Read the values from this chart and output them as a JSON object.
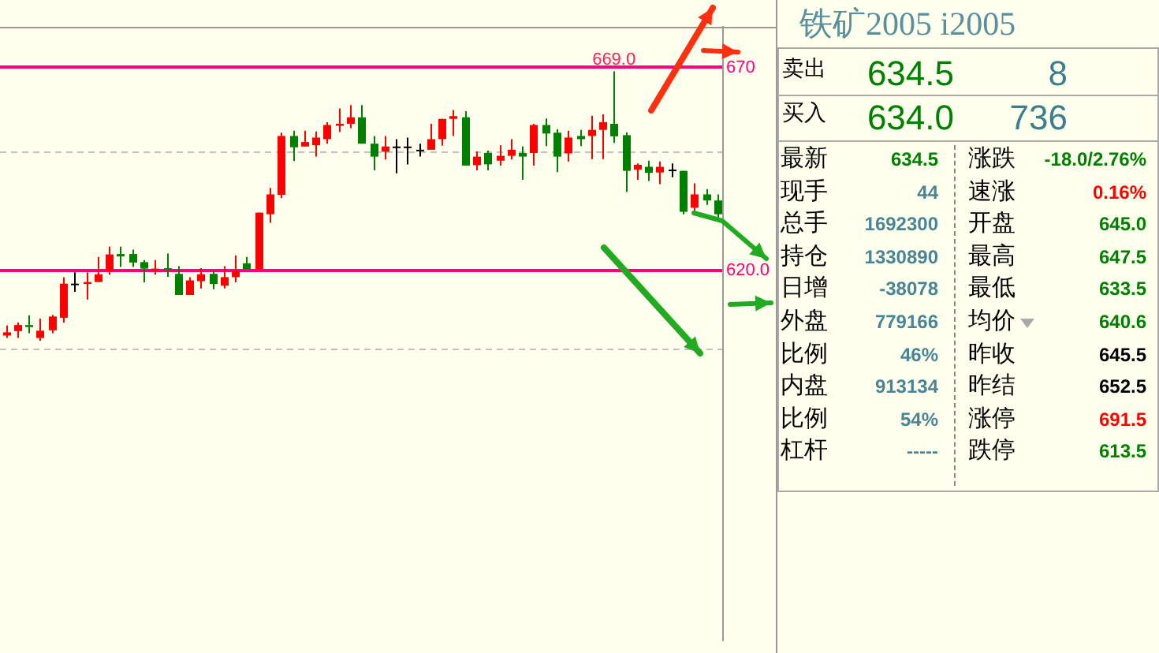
{
  "chart_data": [
    {
      "type": "candlestick",
      "categories": [
        null,
        null,
        null,
        null,
        null,
        null,
        null,
        null,
        null,
        null,
        null,
        null,
        null,
        null,
        null,
        null,
        null,
        null,
        null,
        null,
        null,
        null,
        null,
        null,
        null,
        null,
        null,
        null,
        null,
        null,
        null,
        null,
        null,
        null,
        null,
        null,
        null,
        null,
        null,
        null,
        null,
        null,
        null,
        null,
        null,
        null,
        null,
        null,
        null,
        null,
        null,
        null,
        null,
        null,
        null,
        null,
        null,
        null,
        null,
        null,
        null,
        null,
        null
      ],
      "ohlc": [
        [
          603.9,
          606.4,
          603.3,
          604.7
        ],
        [
          605.0,
          607.1,
          603.3,
          606.5
        ],
        [
          606.5,
          608.9,
          604.5,
          606.0
        ],
        [
          603.3,
          608.1,
          602.6,
          605.1
        ],
        [
          605.2,
          609.0,
          604.5,
          608.6
        ],
        [
          608.3,
          618.3,
          607.1,
          616.7
        ],
        [
          616.7,
          619.5,
          614.7,
          616.7
        ],
        [
          616.6,
          619.5,
          612.8,
          617.1
        ],
        [
          617.1,
          623.3,
          617.1,
          619.0
        ],
        [
          619.9,
          625.8,
          618.9,
          623.9
        ],
        [
          624.0,
          625.8,
          620.8,
          623.4
        ],
        [
          624.0,
          625.1,
          620.8,
          621.9
        ],
        [
          622.0,
          622.5,
          617.0,
          620.4
        ],
        [
          620.2,
          622.5,
          618.9,
          620.4
        ],
        [
          620.5,
          624.1,
          618.4,
          620.1
        ],
        [
          619.1,
          621.0,
          613.9,
          613.9
        ],
        [
          613.9,
          618.3,
          613.9,
          617.5
        ],
        [
          617.3,
          620.5,
          615.5,
          619.0
        ],
        [
          619.1,
          619.8,
          615.3,
          616.6
        ],
        [
          616.2,
          621.0,
          615.5,
          618.3
        ],
        [
          618.3,
          623.7,
          617.0,
          619.8
        ],
        [
          621.7,
          623.3,
          620.3,
          620.3
        ],
        [
          620.3,
          634.2,
          620.3,
          634.2
        ],
        [
          633.8,
          640.3,
          631.7,
          638.7
        ],
        [
          638.6,
          653.9,
          637.8,
          653.1
        ],
        [
          653.1,
          654.4,
          646.9,
          650.3
        ],
        [
          650.5,
          654.4,
          650.5,
          651.6
        ],
        [
          650.8,
          654.2,
          648.0,
          652.7
        ],
        [
          652.3,
          656.5,
          651.2,
          655.8
        ],
        [
          655.6,
          659.9,
          654.1,
          656.1
        ],
        [
          656.1,
          660.7,
          655.0,
          657.7
        ],
        [
          657.7,
          660.7,
          651.2,
          651.2
        ],
        [
          651.2,
          653.1,
          644.6,
          648.0
        ],
        [
          649.2,
          653.1,
          647.3,
          650.5
        ],
        [
          650.5,
          652.3,
          643.9,
          650.5
        ],
        [
          650.5,
          652.7,
          646.1,
          650.5
        ],
        [
          649.7,
          651.2,
          648.0,
          649.7
        ],
        [
          649.7,
          656.1,
          649.7,
          652.3
        ],
        [
          652.3,
          657.3,
          650.7,
          657.3
        ],
        [
          657.3,
          659.5,
          653.1,
          658.0
        ],
        [
          657.7,
          659.2,
          645.8,
          645.8
        ],
        [
          645.9,
          649.3,
          644.6,
          648.0
        ],
        [
          648.9,
          649.5,
          644.6,
          646.1
        ],
        [
          647.0,
          650.8,
          645.8,
          648.2
        ],
        [
          648.2,
          652.3,
          647.3,
          649.7
        ],
        [
          648.9,
          650.5,
          642.3,
          648.0
        ],
        [
          648.9,
          656.1,
          645.8,
          655.8
        ],
        [
          655.8,
          657.4,
          650.6,
          653.7
        ],
        [
          653.9,
          654.8,
          644.2,
          648.0
        ],
        [
          648.8,
          654.4,
          646.8,
          652.7
        ],
        [
          653.1,
          654.6,
          650.6,
          652.3
        ],
        [
          653.1,
          658.1,
          647.4,
          654.6
        ],
        [
          654.6,
          658.4,
          647.4,
          656.5
        ],
        [
          656.1,
          669.0,
          651.4,
          653.0
        ],
        [
          653.3,
          654.0,
          639.3,
          644.5
        ],
        [
          644.8,
          646.3,
          642.3,
          646.0
        ],
        [
          645.5,
          647.0,
          642.0,
          644.0
        ],
        [
          644.1,
          646.8,
          641.2,
          645.5
        ],
        [
          644.8,
          646.3,
          642.9,
          644.8
        ],
        [
          644.5,
          644.5,
          633.8,
          634.4
        ],
        [
          635.4,
          641.4,
          634.2,
          638.7
        ],
        [
          638.7,
          640.0,
          636.1,
          637.2
        ],
        [
          637.2,
          638.7,
          632.5,
          633.8
        ]
      ],
      "colors": [
        "#ff0000",
        "#ff0000",
        "#008000",
        "#ff0000",
        "#ff0000",
        "#ff0000",
        "#000000",
        "#ff0000",
        "#ff0000",
        "#ff0000",
        "#008000",
        "#008000",
        "#008000",
        "#ff0000",
        "#008000",
        "#008000",
        "#ff0000",
        "#ff0000",
        "#008000",
        "#ff0000",
        "#ff0000",
        "#008000",
        "#ff0000",
        "#ff0000",
        "#ff0000",
        "#008000",
        "#ff0000",
        "#ff0000",
        "#ff0000",
        "#ff0000",
        "#ff0000",
        "#008000",
        "#008000",
        "#ff0000",
        "#000000",
        "#000000",
        "#000000",
        "#ff0000",
        "#ff0000",
        "#ff0000",
        "#008000",
        "#ff0000",
        "#008000",
        "#ff0000",
        "#ff0000",
        "#008000",
        "#ff0000",
        "#008000",
        "#008000",
        "#ff0000",
        "#008000",
        "#ff0000",
        "#ff0000",
        "#008000",
        "#008000",
        "#ff0000",
        "#008000",
        "#ff0000",
        "#000000",
        "#008000",
        "#ff0000",
        "#008000",
        "#008000"
      ],
      "ylim": [
        529,
        680
      ],
      "yticks": [
        {
          "value": 670,
          "label": "670"
        },
        {
          "value": 649,
          "label": null
        },
        {
          "value": 620,
          "label": "620.0"
        },
        {
          "value": 600.5,
          "label": null
        }
      ],
      "grid": "y",
      "tick_labels": "y",
      "legend": false,
      "annotations": [
        "669.0"
      ]
    },
    {
      "type": "other",
      "title": "铁矿2005  i2005",
      "annotations": [
        "卖出",
        "634.5",
        "8",
        "买入",
        "634.0",
        "736",
        "最新",
        "634.5",
        "涨跌",
        "-18.0/2.76%",
        "现手",
        "44",
        "速涨",
        "0.16%",
        "总手",
        "1692300",
        "开盘",
        "645.0",
        "持仓",
        "1330890",
        "最高",
        "647.5",
        "日增",
        "-38078",
        "最低",
        "633.5",
        "外盘",
        "779166",
        "均价",
        "640.6",
        "比例",
        "46%",
        "昨收",
        "645.5",
        "内盘",
        "913134",
        "昨结",
        "652.5",
        "比例",
        "54%",
        "涨停",
        "691.5",
        "杠杆",
        "-----",
        "跌停",
        "613.5"
      ]
    }
  ]
}
